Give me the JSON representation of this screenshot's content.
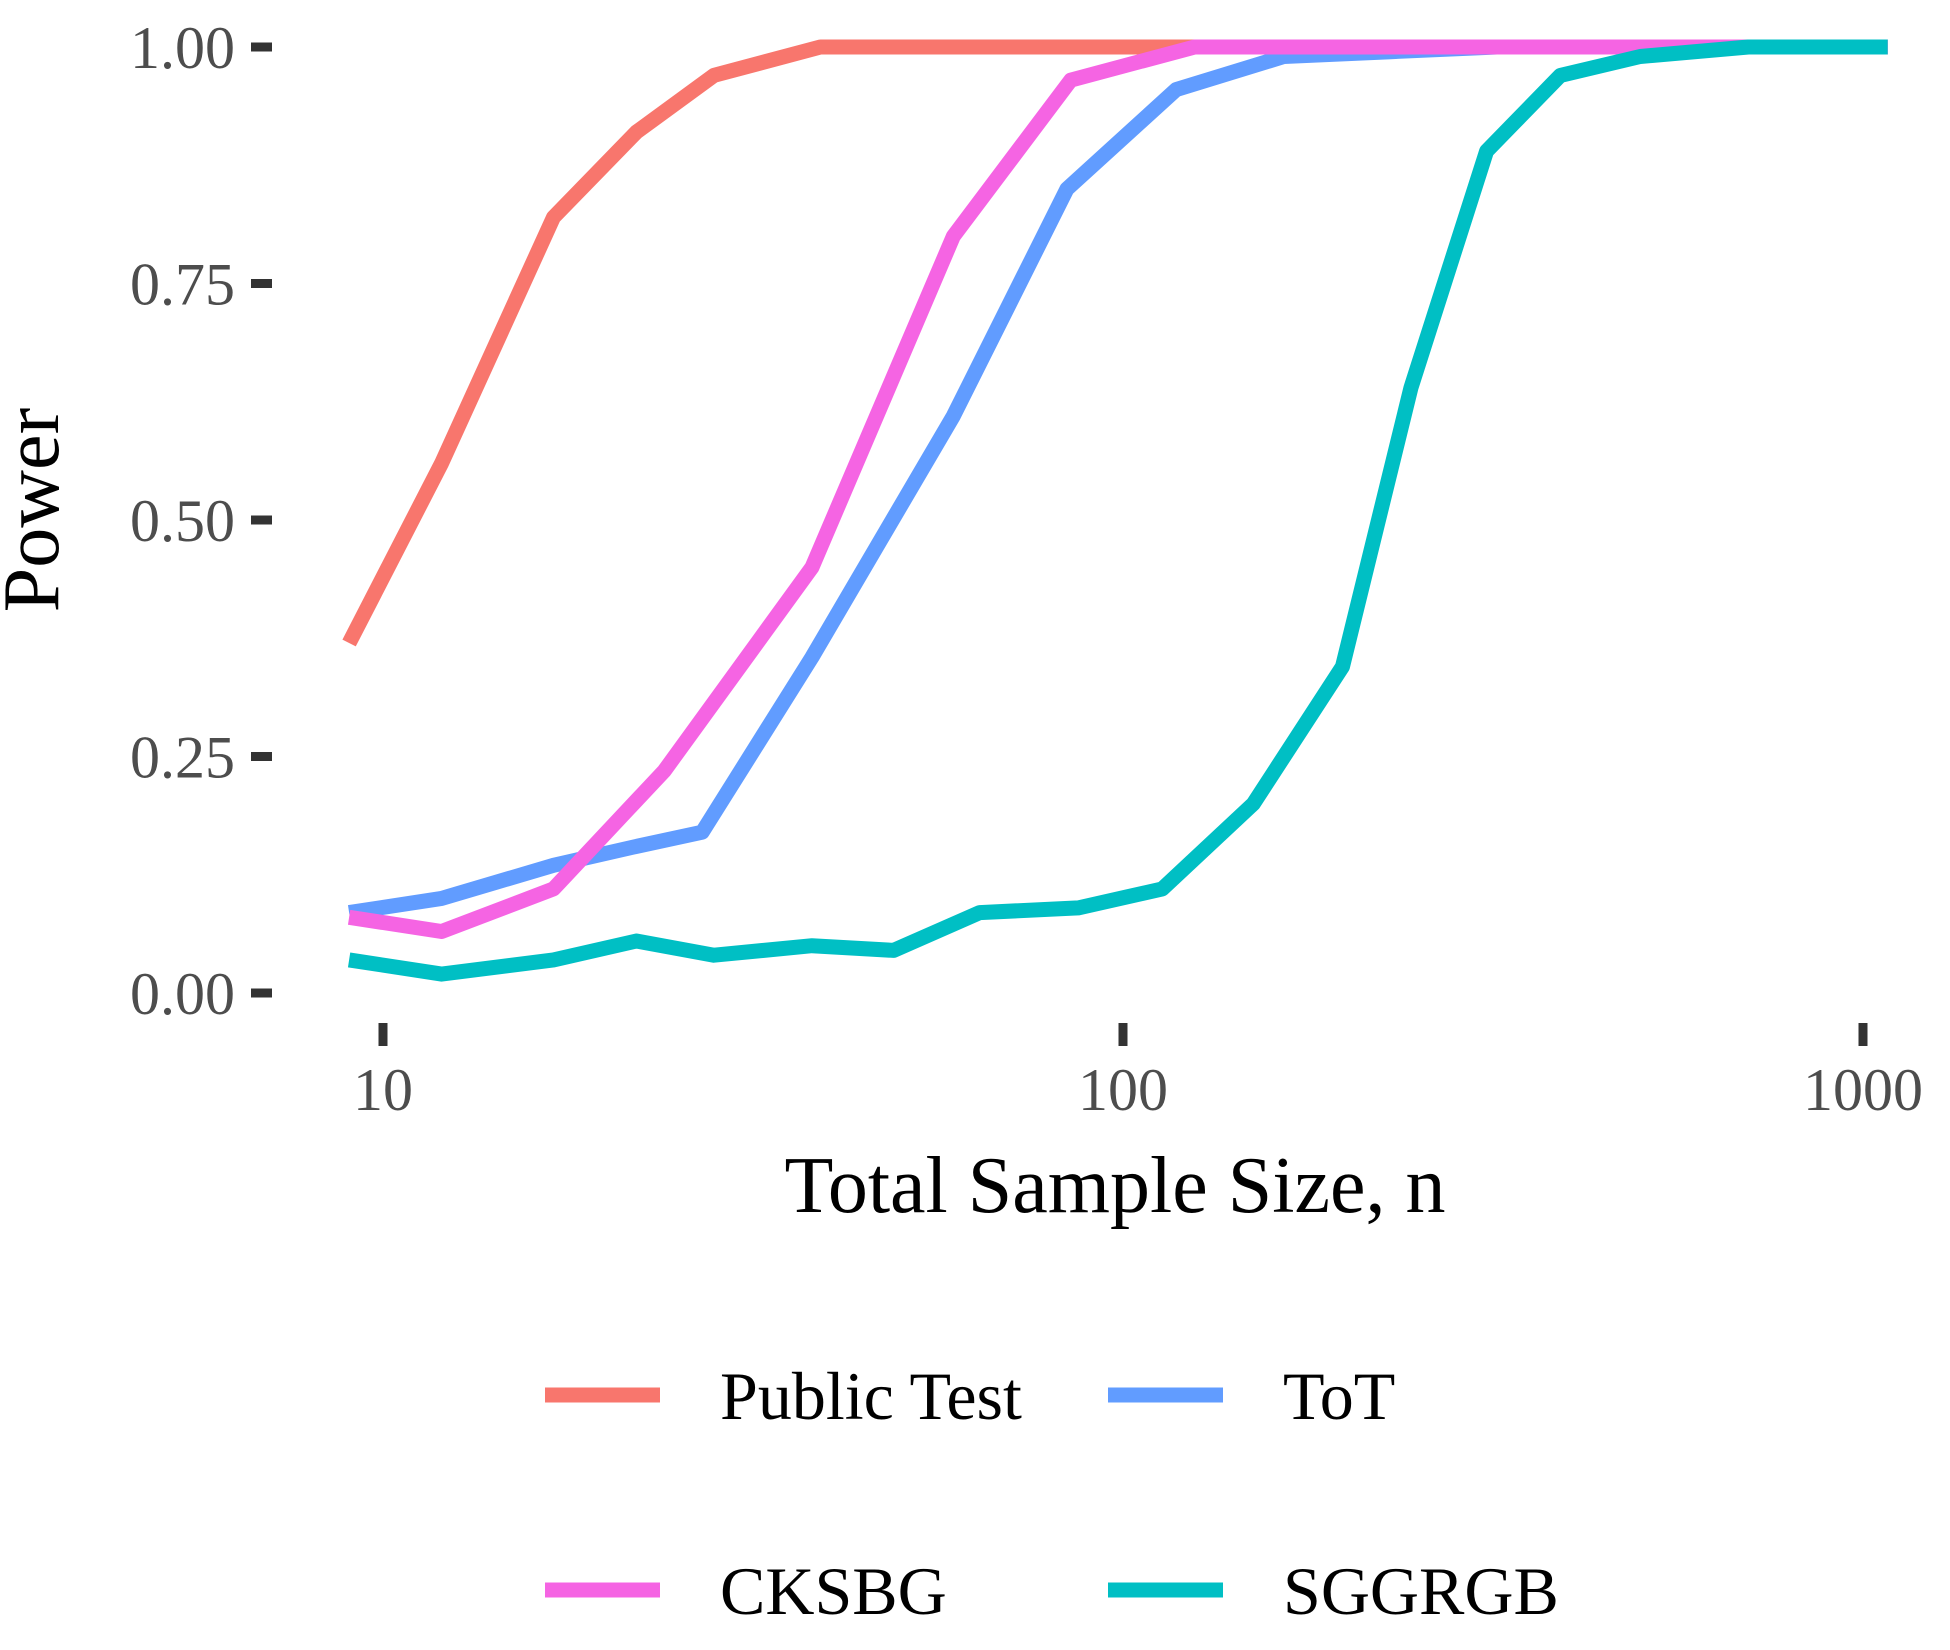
{
  "chart_data": {
    "type": "line",
    "title": "",
    "xlabel": "Total Sample Size, n",
    "ylabel": "Power",
    "x_scale": "log10",
    "xlim": [
      9,
      1100
    ],
    "ylim": [
      0,
      1
    ],
    "grid": false,
    "legend_position": "bottom",
    "x_ticks": [
      {
        "value": 10,
        "label": "10"
      },
      {
        "value": 100,
        "label": "100"
      },
      {
        "value": 1000,
        "label": "1000"
      }
    ],
    "y_ticks": [
      {
        "value": 0.0,
        "label": "0.00"
      },
      {
        "value": 0.25,
        "label": "0.25"
      },
      {
        "value": 0.5,
        "label": "0.50"
      },
      {
        "value": 0.75,
        "label": "0.75"
      },
      {
        "value": 1.0,
        "label": "1.00"
      }
    ],
    "series": [
      {
        "name": "Public Test",
        "color": "#F8766D",
        "x": [
          9,
          12,
          17,
          22,
          28,
          39,
          50,
          65,
          90,
          120,
          160,
          220,
          300,
          400,
          520,
          700,
          1080
        ],
        "y": [
          0.37,
          0.56,
          0.82,
          0.91,
          0.97,
          1.0,
          1.0,
          1.0,
          1.0,
          1.0,
          1.0,
          1.0,
          1.0,
          1.0,
          1.0,
          1.0,
          1.0
        ]
      },
      {
        "name": "ToT",
        "color": "#619CFF",
        "x": [
          9,
          12,
          17,
          22,
          27,
          38,
          59,
          84,
          118,
          165,
          230,
          320,
          420,
          540,
          700,
          860,
          1080
        ],
        "y": [
          0.085,
          0.1,
          0.135,
          0.155,
          0.17,
          0.355,
          0.61,
          0.85,
          0.955,
          0.99,
          0.995,
          1.0,
          1.0,
          1.0,
          1.0,
          1.0,
          1.0
        ]
      },
      {
        "name": "CKSBG",
        "color": "#F564E3",
        "x": [
          9,
          12,
          17,
          24,
          38,
          59,
          85,
          125,
          170,
          250,
          350,
          500,
          700,
          1080
        ],
        "y": [
          0.08,
          0.065,
          0.11,
          0.235,
          0.45,
          0.8,
          0.965,
          1.0,
          1.0,
          1.0,
          1.0,
          1.0,
          1.0,
          1.0
        ]
      },
      {
        "name": "SGGRGB",
        "color": "#00BFC4",
        "x": [
          9,
          12,
          17,
          22,
          28,
          38,
          49,
          64,
          87,
          113,
          150,
          198,
          245,
          310,
          390,
          500,
          700,
          900,
          1080
        ],
        "y": [
          0.035,
          0.02,
          0.035,
          0.055,
          0.04,
          0.05,
          0.045,
          0.085,
          0.09,
          0.11,
          0.2,
          0.345,
          0.64,
          0.89,
          0.97,
          0.99,
          1.0,
          1.0,
          1.0
        ]
      }
    ],
    "legend_order": [
      "Public Test",
      "ToT",
      "CKSBG",
      "SGGRGB"
    ]
  }
}
